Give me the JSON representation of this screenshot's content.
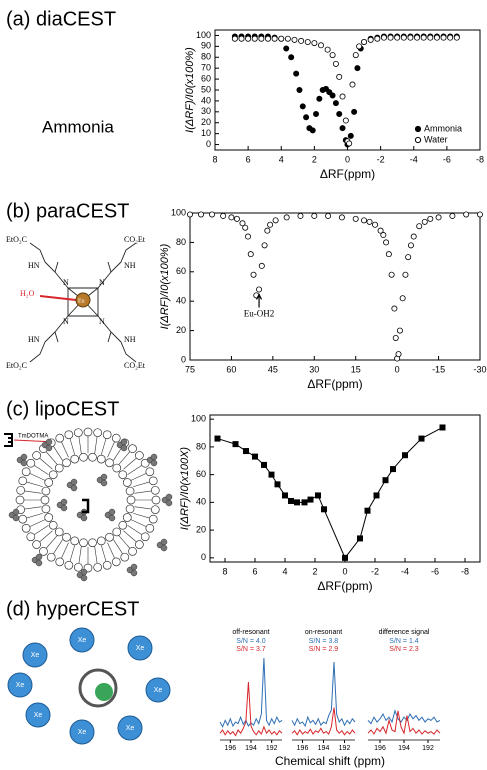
{
  "figure": {
    "panels": [
      {
        "label": "(a) diaCEST",
        "caption": "Ammonia"
      },
      {
        "label": "(b) paraCEST",
        "molecule": [
          "EtO₂C",
          "CO₂Et",
          "HN",
          "NH",
          "H₂O",
          "Eu",
          "HN",
          "NH",
          "EtO₂C",
          "CO₂Et",
          "N",
          "N",
          "N",
          "N"
        ]
      },
      {
        "label": "(c) lipoCEST",
        "tag": "TmDOTMA"
      },
      {
        "label": "(d) hyperCEST",
        "spheres": [
          "Xe",
          "Xe",
          "Xe",
          "Xe",
          "Xe",
          "Xe",
          "Xe",
          "Xe"
        ],
        "xlabel": "Chemical shift (ppm)"
      }
    ]
  },
  "chart_data": [
    {
      "type": "scatter",
      "xlabel": "ΔRF(ppm)",
      "ylabel": "I(ΔRF)/I0(x100%)",
      "xlim": [
        8,
        -8
      ],
      "xticks": [
        8,
        6,
        4,
        2,
        0,
        -2,
        -4,
        -6,
        -8
      ],
      "ylim": [
        -5,
        105
      ],
      "yticks": [
        0,
        10,
        20,
        30,
        40,
        50,
        60,
        70,
        80,
        90,
        100
      ],
      "legend": "lower right",
      "series": [
        {
          "name": "Ammonia",
          "marker": "filled",
          "color": "#000000",
          "x": [
            6.8,
            6.4,
            6.0,
            5.6,
            5.2,
            4.8,
            4.4,
            4.0,
            3.7,
            3.4,
            3.1,
            2.9,
            2.7,
            2.5,
            2.3,
            2.1,
            1.9,
            1.7,
            1.5,
            1.3,
            1.1,
            0.9,
            0.7,
            0.5,
            0.3,
            0.1,
            0,
            -0.2,
            -0.4,
            -0.6,
            -0.8,
            -1.0,
            -1.4,
            -1.8,
            -2.2,
            -2.6,
            -3.0,
            -3.4,
            -3.8,
            -4.2,
            -4.6,
            -5.0,
            -5.4,
            -5.8,
            -6.2,
            -6.6
          ],
          "values": [
            99,
            99,
            99,
            99,
            99,
            99,
            98,
            97,
            88,
            80,
            65,
            50,
            35,
            25,
            15,
            13,
            28,
            42,
            50,
            51,
            48,
            45,
            38,
            28,
            15,
            4,
            0,
            8,
            30,
            70,
            88,
            94,
            97,
            98,
            99,
            99,
            99,
            99,
            99,
            99,
            99,
            99,
            99,
            99,
            99,
            99
          ]
        },
        {
          "name": "Water",
          "marker": "open",
          "color": "#000000",
          "x": [
            6.8,
            6.4,
            6.0,
            5.6,
            5.2,
            4.8,
            4.4,
            4.0,
            3.6,
            3.2,
            2.8,
            2.4,
            2.0,
            1.6,
            1.2,
            0.9,
            0.7,
            0.5,
            0.3,
            0.1,
            0,
            -0.1,
            -0.3,
            -0.5,
            -0.7,
            -1.0,
            -1.4,
            -1.8,
            -2.2,
            -2.6,
            -3.0,
            -3.4,
            -3.8,
            -4.2,
            -4.6,
            -5.0,
            -5.4,
            -5.8,
            -6.2,
            -6.6
          ],
          "values": [
            97,
            97,
            97,
            97,
            97,
            97,
            97,
            97,
            97,
            96,
            95,
            94,
            93,
            91,
            87,
            82,
            74,
            62,
            44,
            22,
            3,
            1,
            55,
            82,
            90,
            94,
            96,
            97,
            98,
            98,
            98,
            98,
            98,
            98,
            98,
            98,
            98,
            98,
            98,
            98
          ]
        }
      ]
    },
    {
      "type": "scatter",
      "xlabel": "ΔRF(ppm)",
      "ylabel": "I(ΔRF)/I0(x100%)",
      "xlim": [
        75,
        -30
      ],
      "xticks": [
        75,
        60,
        45,
        30,
        15,
        0,
        -15,
        -30
      ],
      "ylim": [
        0,
        100
      ],
      "yticks": [
        0,
        20,
        40,
        60,
        80,
        100
      ],
      "annotation": {
        "text": "Eu-OH2",
        "x": 50
      },
      "series": [
        {
          "marker": "open",
          "color": "#000000",
          "x": [
            75,
            71,
            67,
            63,
            60,
            58,
            56,
            55,
            54,
            53,
            52,
            51,
            50,
            49,
            48,
            47,
            46,
            44,
            40,
            35,
            30,
            25,
            20,
            15,
            12,
            10,
            8,
            6,
            5,
            4,
            3,
            2,
            1,
            0.5,
            0,
            -0.5,
            -1,
            -2,
            -3,
            -4,
            -5,
            -6,
            -8,
            -10,
            -12,
            -15,
            -20,
            -25,
            -30
          ],
          "values": [
            99,
            99,
            99,
            98,
            97,
            96,
            93,
            90,
            84,
            72,
            58,
            44,
            48,
            64,
            78,
            88,
            92,
            95,
            97,
            98,
            98,
            98,
            97,
            96,
            95,
            94,
            92,
            88,
            85,
            80,
            72,
            58,
            35,
            15,
            1,
            4,
            20,
            42,
            58,
            70,
            78,
            84,
            91,
            94,
            96,
            97,
            98,
            99,
            99
          ]
        }
      ]
    },
    {
      "type": "line",
      "xlabel": "ΔRF(ppm)",
      "ylabel": "I(ΔRF)/I0(x100X)",
      "xlim": [
        9,
        -9
      ],
      "xticks": [
        8,
        6,
        4,
        2,
        0,
        -2,
        -4,
        -6,
        -8
      ],
      "ylim": [
        -3,
        103
      ],
      "yticks": [
        0,
        20,
        40,
        60,
        80,
        100
      ],
      "series": [
        {
          "marker": "square",
          "color": "#000000",
          "x": [
            8.5,
            7.3,
            6.6,
            6.0,
            5.4,
            4.9,
            4.5,
            4.0,
            3.6,
            3.2,
            2.7,
            2.3,
            1.8,
            1.4,
            0,
            -1.0,
            -1.5,
            -2.1,
            -2.7,
            -3.2,
            -4.0,
            -5.1,
            -6.5
          ],
          "values": [
            86,
            82,
            77,
            73,
            67,
            60,
            53,
            45,
            41,
            40,
            40,
            42,
            45,
            35,
            0,
            14,
            34,
            45,
            56,
            64,
            74,
            86,
            94
          ]
        }
      ]
    },
    {
      "type": "spectrum",
      "title": "off-resonant",
      "xlim": [
        197,
        191
      ],
      "xticks": [
        196,
        194,
        192
      ],
      "x": [
        197,
        196.75,
        196.5,
        196.25,
        196,
        195.75,
        195.5,
        195.25,
        195,
        194.75,
        194.5,
        194.25,
        194,
        193.75,
        193.5,
        193.25,
        193,
        192.75,
        192.5,
        192.25,
        192,
        191.75,
        191.5,
        191.25,
        191
      ],
      "series": [
        {
          "label": "S/N = 4.0",
          "color": "#2f6fb5",
          "values": [
            20,
            14,
            22,
            16,
            24,
            15,
            20,
            18,
            26,
            17,
            22,
            15,
            19,
            16,
            24,
            18,
            30,
            100,
            22,
            16,
            24,
            18,
            26,
            20,
            22
          ]
        },
        {
          "label": "S/N = 3.7",
          "color": "#d7262b",
          "values": [
            6,
            10,
            4,
            9,
            5,
            8,
            3,
            10,
            6,
            12,
            20,
            70,
            15,
            8,
            4,
            9,
            5,
            14,
            6,
            10,
            5,
            8,
            4,
            9,
            6
          ]
        }
      ]
    },
    {
      "type": "spectrum",
      "title": "on-resonant",
      "xlim": [
        197,
        191
      ],
      "xticks": [
        196,
        194,
        192
      ],
      "x": [
        197,
        196.75,
        196.5,
        196.25,
        196,
        195.75,
        195.5,
        195.25,
        195,
        194.75,
        194.5,
        194.25,
        194,
        193.75,
        193.5,
        193.25,
        193,
        192.75,
        192.5,
        192.25,
        192,
        191.75,
        191.5,
        191.25,
        191
      ],
      "series": [
        {
          "label": "S/N = 3.8",
          "color": "#2f6fb5",
          "values": [
            22,
            16,
            24,
            18,
            20,
            15,
            26,
            19,
            22,
            17,
            24,
            16,
            20,
            18,
            28,
            35,
            95,
            30,
            20,
            24,
            16,
            22,
            18,
            24,
            20
          ]
        },
        {
          "label": "S/N = 2.9",
          "color": "#d7262b",
          "values": [
            6,
            9,
            4,
            10,
            5,
            8,
            6,
            11,
            5,
            9,
            7,
            12,
            6,
            8,
            5,
            14,
            38,
            10,
            6,
            9,
            4,
            8,
            5,
            10,
            6
          ]
        }
      ]
    },
    {
      "type": "spectrum",
      "title": "difference signal",
      "xlim": [
        197,
        191
      ],
      "xticks": [
        196,
        194,
        192
      ],
      "x": [
        197,
        196.75,
        196.5,
        196.25,
        196,
        195.75,
        195.5,
        195.25,
        195,
        194.75,
        194.5,
        194.25,
        194,
        193.75,
        193.5,
        193.25,
        193,
        192.75,
        192.5,
        192.25,
        192,
        191.75,
        191.5,
        191.25,
        191
      ],
      "series": [
        {
          "label": "S/N = 1.4",
          "color": "#2f6fb5",
          "values": [
            22,
            18,
            26,
            20,
            24,
            30,
            22,
            26,
            20,
            34,
            24,
            20,
            26,
            22,
            30,
            24,
            28,
            22,
            26,
            20,
            24,
            22,
            26,
            20,
            22
          ]
        },
        {
          "label": "S/N = 2.3",
          "color": "#d7262b",
          "values": [
            6,
            10,
            5,
            12,
            8,
            14,
            6,
            22,
            10,
            8,
            34,
            14,
            6,
            28,
            8,
            12,
            6,
            10,
            5,
            9,
            6,
            8,
            5,
            10,
            6
          ]
        }
      ]
    }
  ]
}
